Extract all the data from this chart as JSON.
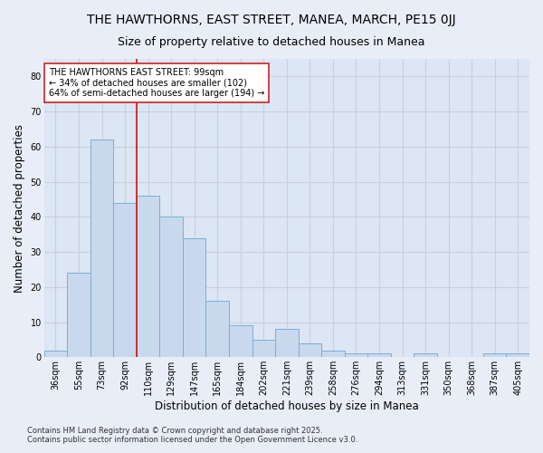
{
  "title": "THE HAWTHORNS, EAST STREET, MANEA, MARCH, PE15 0JJ",
  "subtitle": "Size of property relative to detached houses in Manea",
  "xlabel": "Distribution of detached houses by size in Manea",
  "ylabel": "Number of detached properties",
  "bar_color": "#c8d9ee",
  "bar_edge_color": "#7aafd4",
  "categories": [
    "36sqm",
    "55sqm",
    "73sqm",
    "92sqm",
    "110sqm",
    "129sqm",
    "147sqm",
    "165sqm",
    "184sqm",
    "202sqm",
    "221sqm",
    "239sqm",
    "258sqm",
    "276sqm",
    "294sqm",
    "313sqm",
    "331sqm",
    "350sqm",
    "368sqm",
    "387sqm",
    "405sqm"
  ],
  "values": [
    2,
    24,
    62,
    44,
    46,
    40,
    34,
    16,
    9,
    5,
    8,
    4,
    2,
    1,
    1,
    0,
    1,
    0,
    0,
    1,
    1
  ],
  "ylim": [
    0,
    85
  ],
  "yticks": [
    0,
    10,
    20,
    30,
    40,
    50,
    60,
    70,
    80
  ],
  "vline_x": 3.5,
  "vline_color": "#cc2222",
  "annotation_text": "THE HAWTHORNS EAST STREET: 99sqm\n← 34% of detached houses are smaller (102)\n64% of semi-detached houses are larger (194) →",
  "annotation_box_facecolor": "#ffffff",
  "annotation_box_edgecolor": "#cc2222",
  "grid_color": "#c8d0e0",
  "plot_bg_color": "#dce6f4",
  "fig_bg_color": "#e8edf8",
  "footer": "Contains HM Land Registry data © Crown copyright and database right 2025.\nContains public sector information licensed under the Open Government Licence v3.0.",
  "title_fontsize": 10,
  "subtitle_fontsize": 9,
  "axis_label_fontsize": 8.5,
  "tick_fontsize": 7,
  "annotation_fontsize": 7,
  "footer_fontsize": 6
}
